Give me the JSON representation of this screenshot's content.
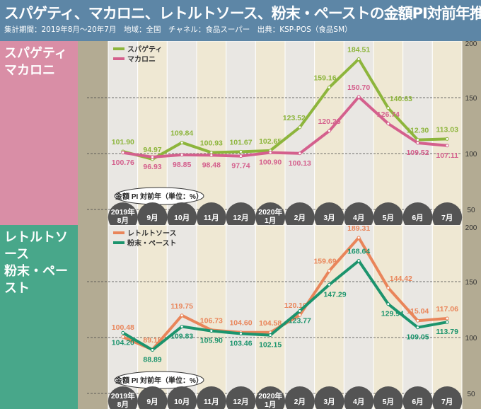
{
  "header": {
    "title": "スパゲティ、マカロニ、レトルトソース、粉末・ペーストの金額PI対前年推移",
    "subtitle": "集計期間：2019年8月～20年7月　地域：全国　チャネル：食品スーパー　出典：KSP-POS（食品SM）"
  },
  "colors": {
    "header": "#5d86a6",
    "panel1": "#d98ea6",
    "panel2": "#48a78a",
    "spaghetti": "#8db53c",
    "macaroni": "#d4608d",
    "retort": "#e9855a",
    "powder": "#1c946d"
  },
  "chart_data": [
    {
      "type": "line",
      "panel_label": [
        "スパゲティ",
        "マカロニ"
      ],
      "note": "金額 PI 対前年（単位：%）",
      "categories": [
        "2019年\n8月",
        "9月",
        "10月",
        "11月",
        "12月",
        "2020年\n1月",
        "2月",
        "3月",
        "4月",
        "5月",
        "6月",
        "7月"
      ],
      "yticks": [
        50,
        100,
        150,
        200
      ],
      "ylim": [
        40,
        200
      ],
      "grid": "dashed horizontal",
      "legend": "top-left",
      "series": [
        {
          "name": "スパゲティ",
          "values": [
            101.9,
            94.97,
            109.84,
            100.93,
            101.67,
            102.65,
            123.52,
            159.16,
            184.51,
            140.63,
            112.3,
            113.03
          ]
        },
        {
          "name": "マカロニ",
          "values": [
            100.76,
            96.93,
            98.85,
            98.48,
            97.74,
            100.9,
            100.13,
            120.25,
            150.7,
            126.74,
            109.52,
            107.11
          ]
        }
      ]
    },
    {
      "type": "line",
      "panel_label": [
        "レトルトソース",
        "粉末・ペースト"
      ],
      "note": "金額 PI 対前年（単位：%）",
      "categories": [
        "2019年\n8月",
        "9月",
        "10月",
        "11月",
        "12月",
        "2020年\n1月",
        "2月",
        "3月",
        "4月",
        "5月",
        "6月",
        "7月"
      ],
      "yticks": [
        50,
        100,
        150,
        200
      ],
      "ylim": [
        40,
        200
      ],
      "grid": "dashed horizontal",
      "legend": "top-left",
      "series": [
        {
          "name": "レトルトソース",
          "values": [
            100.48,
            89.18,
            119.75,
            106.73,
            104.6,
            104.58,
            120.1,
            159.69,
            189.31,
            144.42,
            115.04,
            117.06
          ]
        },
        {
          "name": "粉末・ペースト",
          "values": [
            104.2,
            88.89,
            109.83,
            105.9,
            103.46,
            102.15,
            123.77,
            147.29,
            168.64,
            129.94,
            109.05,
            113.79
          ]
        }
      ]
    }
  ]
}
